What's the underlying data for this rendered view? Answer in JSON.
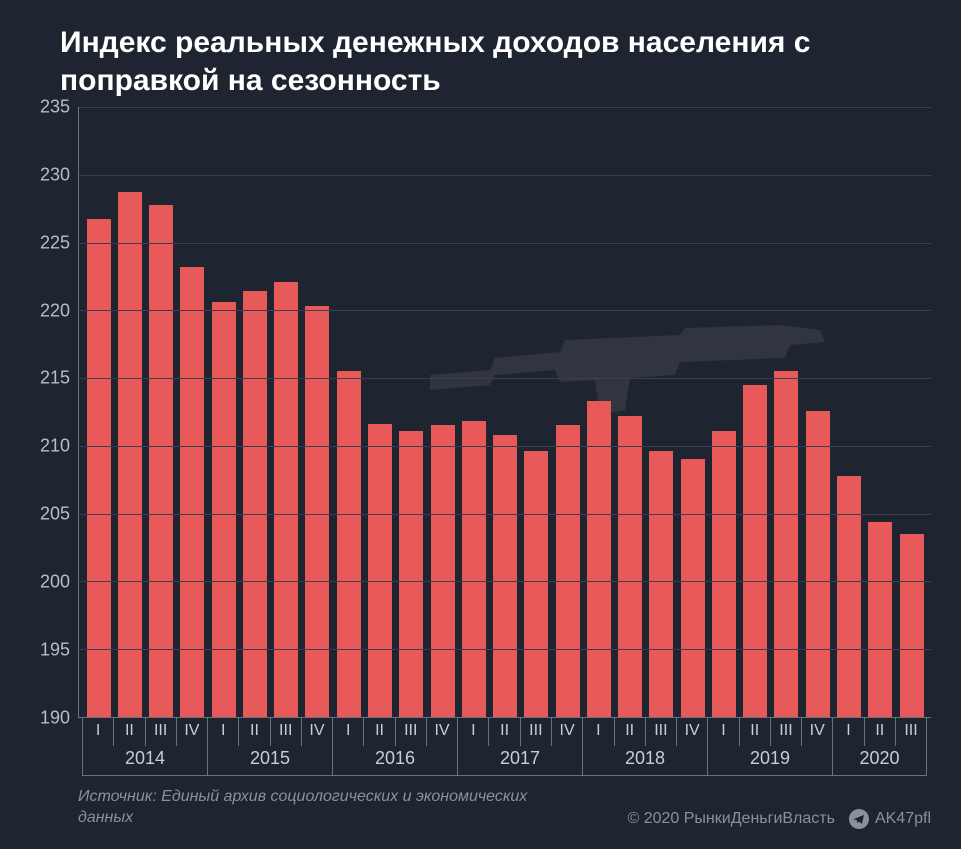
{
  "title": "Индекс реальных денежных доходов населения с поправкой на сезонность",
  "chart": {
    "type": "bar",
    "ylim": [
      190,
      235
    ],
    "ytick_step": 5,
    "yticks": [
      190,
      195,
      200,
      205,
      210,
      215,
      220,
      225,
      230,
      235
    ],
    "bar_color": "#e85a5a",
    "background_color": "#1e2430",
    "grid_color": "#3a4050",
    "axis_color": "#6a7280",
    "tick_text_color": "#c8ced8",
    "title_color": "#ffffff",
    "title_fontsize": 30,
    "tick_fontsize": 18,
    "years": [
      {
        "year": "2014",
        "quarters": [
          "I",
          "II",
          "III",
          "IV"
        ],
        "values": [
          226.7,
          228.7,
          227.8,
          223.2
        ]
      },
      {
        "year": "2015",
        "quarters": [
          "I",
          "II",
          "III",
          "IV"
        ],
        "values": [
          220.6,
          221.4,
          222.1,
          220.3
        ]
      },
      {
        "year": "2016",
        "quarters": [
          "I",
          "II",
          "III",
          "IV"
        ],
        "values": [
          215.5,
          211.6,
          211.1,
          211.5
        ]
      },
      {
        "year": "2017",
        "quarters": [
          "I",
          "II",
          "III",
          "IV"
        ],
        "values": [
          211.8,
          210.8,
          209.6,
          211.5
        ]
      },
      {
        "year": "2018",
        "quarters": [
          "I",
          "II",
          "III",
          "IV"
        ],
        "values": [
          213.3,
          212.2,
          209.6,
          209.0
        ]
      },
      {
        "year": "2019",
        "quarters": [
          "I",
          "II",
          "III",
          "IV"
        ],
        "values": [
          211.1,
          214.5,
          215.5,
          212.6
        ]
      },
      {
        "year": "2020",
        "quarters": [
          "I",
          "II",
          "III"
        ],
        "values": [
          207.8,
          204.4,
          203.5
        ]
      }
    ]
  },
  "source": "Источник: Единый архив социологических и экономических данных",
  "copyright": "© 2020  РынкиДеньгиВласть",
  "telegram_handle": "AK47pfl",
  "watermark": "ak47-silhouette"
}
